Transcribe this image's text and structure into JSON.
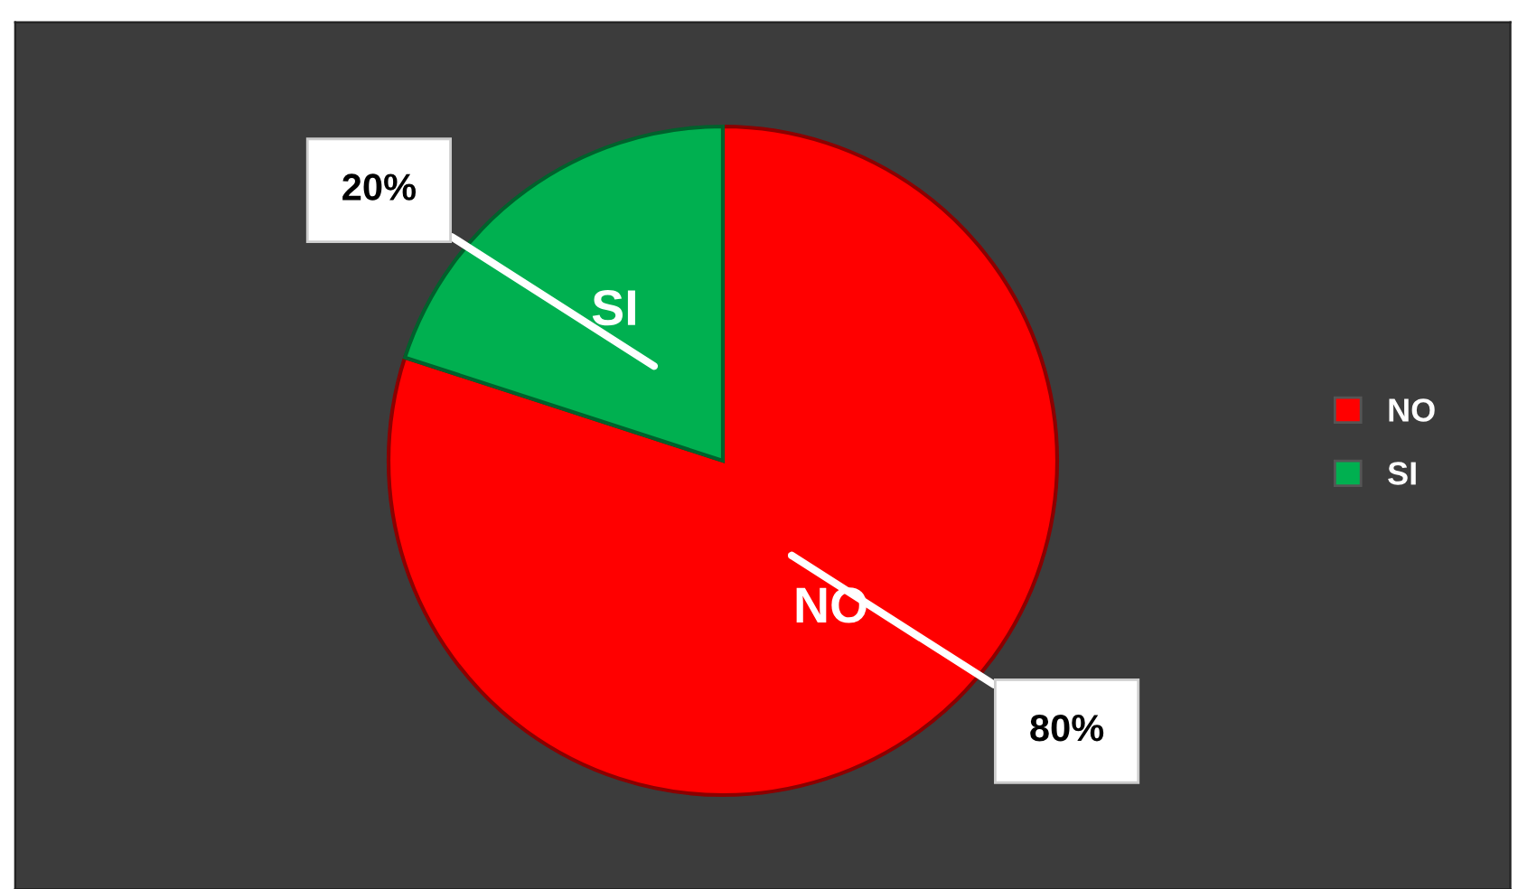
{
  "chart_data": {
    "type": "pie",
    "categories": [
      "NO",
      "SI"
    ],
    "values": [
      80,
      20
    ],
    "colors": [
      "#ff0000",
      "#00b050"
    ],
    "value_labels": [
      "80%",
      "20%"
    ],
    "legend": "right"
  }
}
